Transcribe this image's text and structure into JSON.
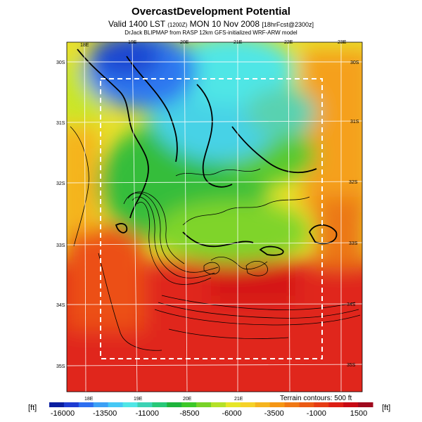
{
  "title": "OvercastDevelopment Potential",
  "subtitle": {
    "valid": "Valid 1400 LST",
    "utc": "(1200Z)",
    "date": "MON 10 Nov 2008",
    "forecast": "[18hrFcst@2300z]"
  },
  "credit": "DrJack BLIPMAP from RASP 12km GFS-initialized WRF-ARW model",
  "terrain_note": "Terrain contours: 500 ft",
  "unit_label": "[ft]",
  "lon_labels_top": [
    "18E",
    "19E",
    "20E",
    "21E",
    "22E",
    "23E"
  ],
  "lon_labels_bottom": [
    "18E",
    "19E",
    "20E",
    "21E"
  ],
  "lat_labels_left": [
    "30S",
    "31S",
    "32S",
    "33S",
    "34S",
    "35S"
  ],
  "lat_labels_right": [
    "30S",
    "31S",
    "32S",
    "33S",
    "34S",
    "35S"
  ],
  "colorbar": {
    "labels": [
      "-16000",
      "-13500",
      "-11000",
      "-8500",
      "-6000",
      "-3500",
      "-1000",
      "1500"
    ],
    "colors": [
      "#0a1ea0",
      "#1e3cd2",
      "#2d6ef0",
      "#3ca0f5",
      "#46c8f5",
      "#50e6e6",
      "#3cd2b4",
      "#28c878",
      "#1eb43c",
      "#3cc828",
      "#78d228",
      "#b4e128",
      "#e6e628",
      "#f5d228",
      "#f5b41e",
      "#f59614",
      "#f07814",
      "#eb5a14",
      "#e63c14",
      "#dc1e14",
      "#c80a14",
      "#a00a1e"
    ]
  }
}
